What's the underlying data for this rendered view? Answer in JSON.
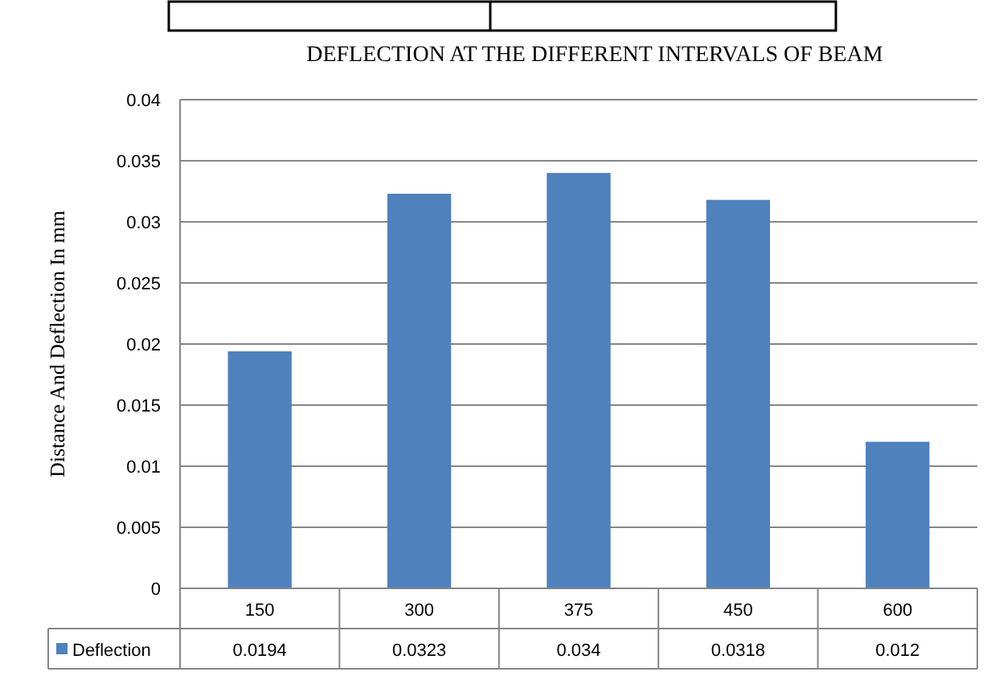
{
  "chart_data": {
    "type": "bar",
    "title": "DEFLECTION AT THE DIFFERENT INTERVALS OF BEAM",
    "ylabel": "Distance  And  Deflection  In mm",
    "categories": [
      "150",
      "300",
      "375",
      "450",
      "600"
    ],
    "series": [
      {
        "name": "Deflection",
        "color": "#4f81bd",
        "values": [
          0.0194,
          0.0323,
          0.034,
          0.0318,
          0.012
        ]
      }
    ],
    "ylim": [
      0,
      0.04
    ],
    "yticks": [
      0,
      0.005,
      0.01,
      0.015,
      0.02,
      0.025,
      0.03,
      0.035,
      0.04
    ],
    "grid": "y",
    "legend": "bottom",
    "data_labels": true
  }
}
